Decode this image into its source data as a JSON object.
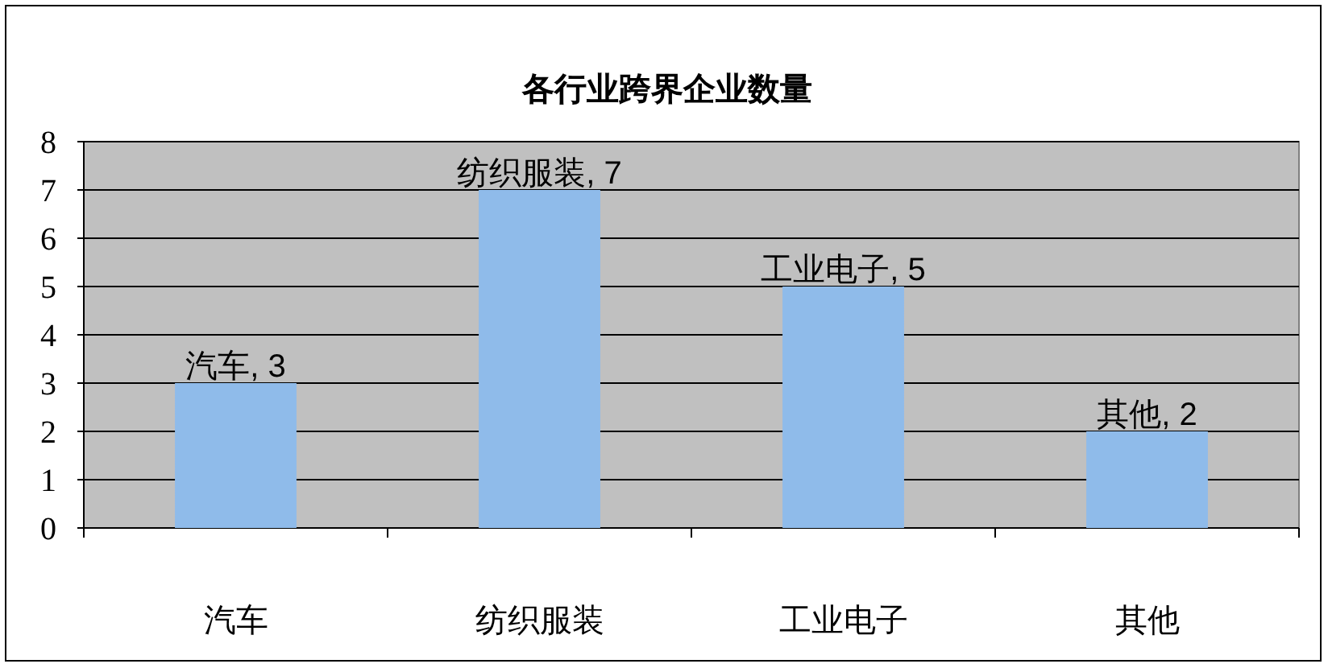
{
  "chart_data": {
    "type": "bar",
    "title": "各行业跨界企业数量",
    "categories": [
      "汽车",
      "纺织服装",
      "工业电子",
      "其他"
    ],
    "values": [
      3,
      7,
      5,
      2
    ],
    "color": "#8fbbea",
    "value_labels": [
      "汽车, 3",
      "纺织服装, 7",
      "工业电子, 5",
      "其他, 2"
    ],
    "ylim": [
      0,
      8
    ],
    "yticks": [
      0,
      1,
      2,
      3,
      4,
      5,
      6,
      7,
      8
    ],
    "grid": "y"
  }
}
